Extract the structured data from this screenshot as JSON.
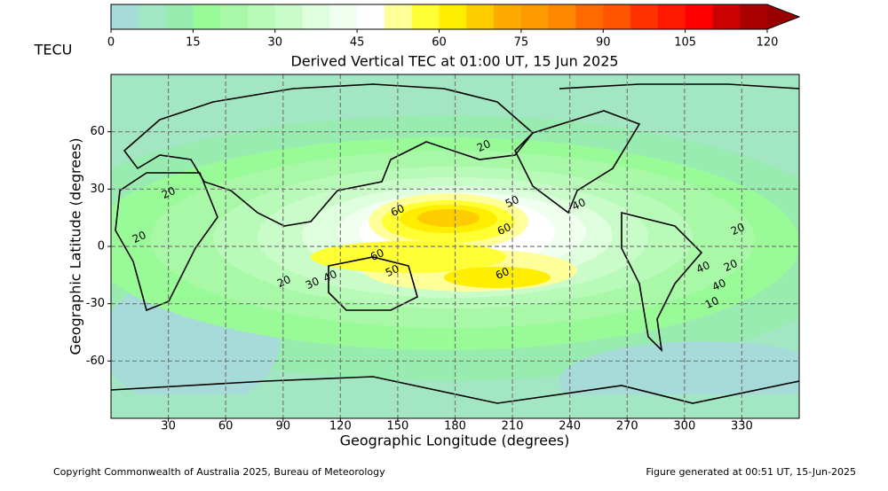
{
  "header": {
    "unit": "TECU",
    "title": "Derived Vertical TEC at 01:00 UT, 15 Jun 2025"
  },
  "colorbar": {
    "levels": [
      0,
      5,
      10,
      15,
      20,
      25,
      30,
      35,
      40,
      45,
      50,
      55,
      60,
      65,
      70,
      75,
      80,
      85,
      90,
      95,
      100,
      105,
      110,
      115,
      120
    ],
    "colors": [
      "#a6dbd9",
      "#a2e6c4",
      "#98ecb0",
      "#98fb98",
      "#a8f8a8",
      "#b8fab8",
      "#cafcca",
      "#defede",
      "#f0fff0",
      "#ffffff",
      "#ffff99",
      "#ffff33",
      "#ffee00",
      "#ffcc00",
      "#ffaa00",
      "#ff9900",
      "#ff8800",
      "#ff6a00",
      "#ff5500",
      "#ff3300",
      "#ff1a00",
      "#ff0000",
      "#cc0000",
      "#aa0000"
    ],
    "extend_color": "#990000",
    "ticks": [
      0,
      15,
      30,
      45,
      60,
      75,
      90,
      105,
      120
    ]
  },
  "map": {
    "xlabel": "Geographic Longitude (degrees)",
    "ylabel": "Geographic Latitude (degrees)",
    "xlim": [
      0,
      360
    ],
    "ylim": [
      -90,
      90
    ],
    "xticks": [
      30,
      60,
      90,
      120,
      150,
      180,
      210,
      240,
      270,
      300,
      330
    ],
    "yticks": [
      -60,
      -30,
      0,
      30,
      60
    ],
    "grid": true,
    "contour_labels": [
      20,
      20,
      20,
      40,
      50,
      40,
      60,
      60,
      60,
      50,
      60,
      20,
      40,
      30,
      20,
      20,
      40,
      10
    ]
  },
  "footer": {
    "copyright": "Copyright Commonwealth of Australia 2025, Bureau of Meteorology",
    "generated": "Figure generated at 00:51 UT, 15-Jun-2025"
  }
}
